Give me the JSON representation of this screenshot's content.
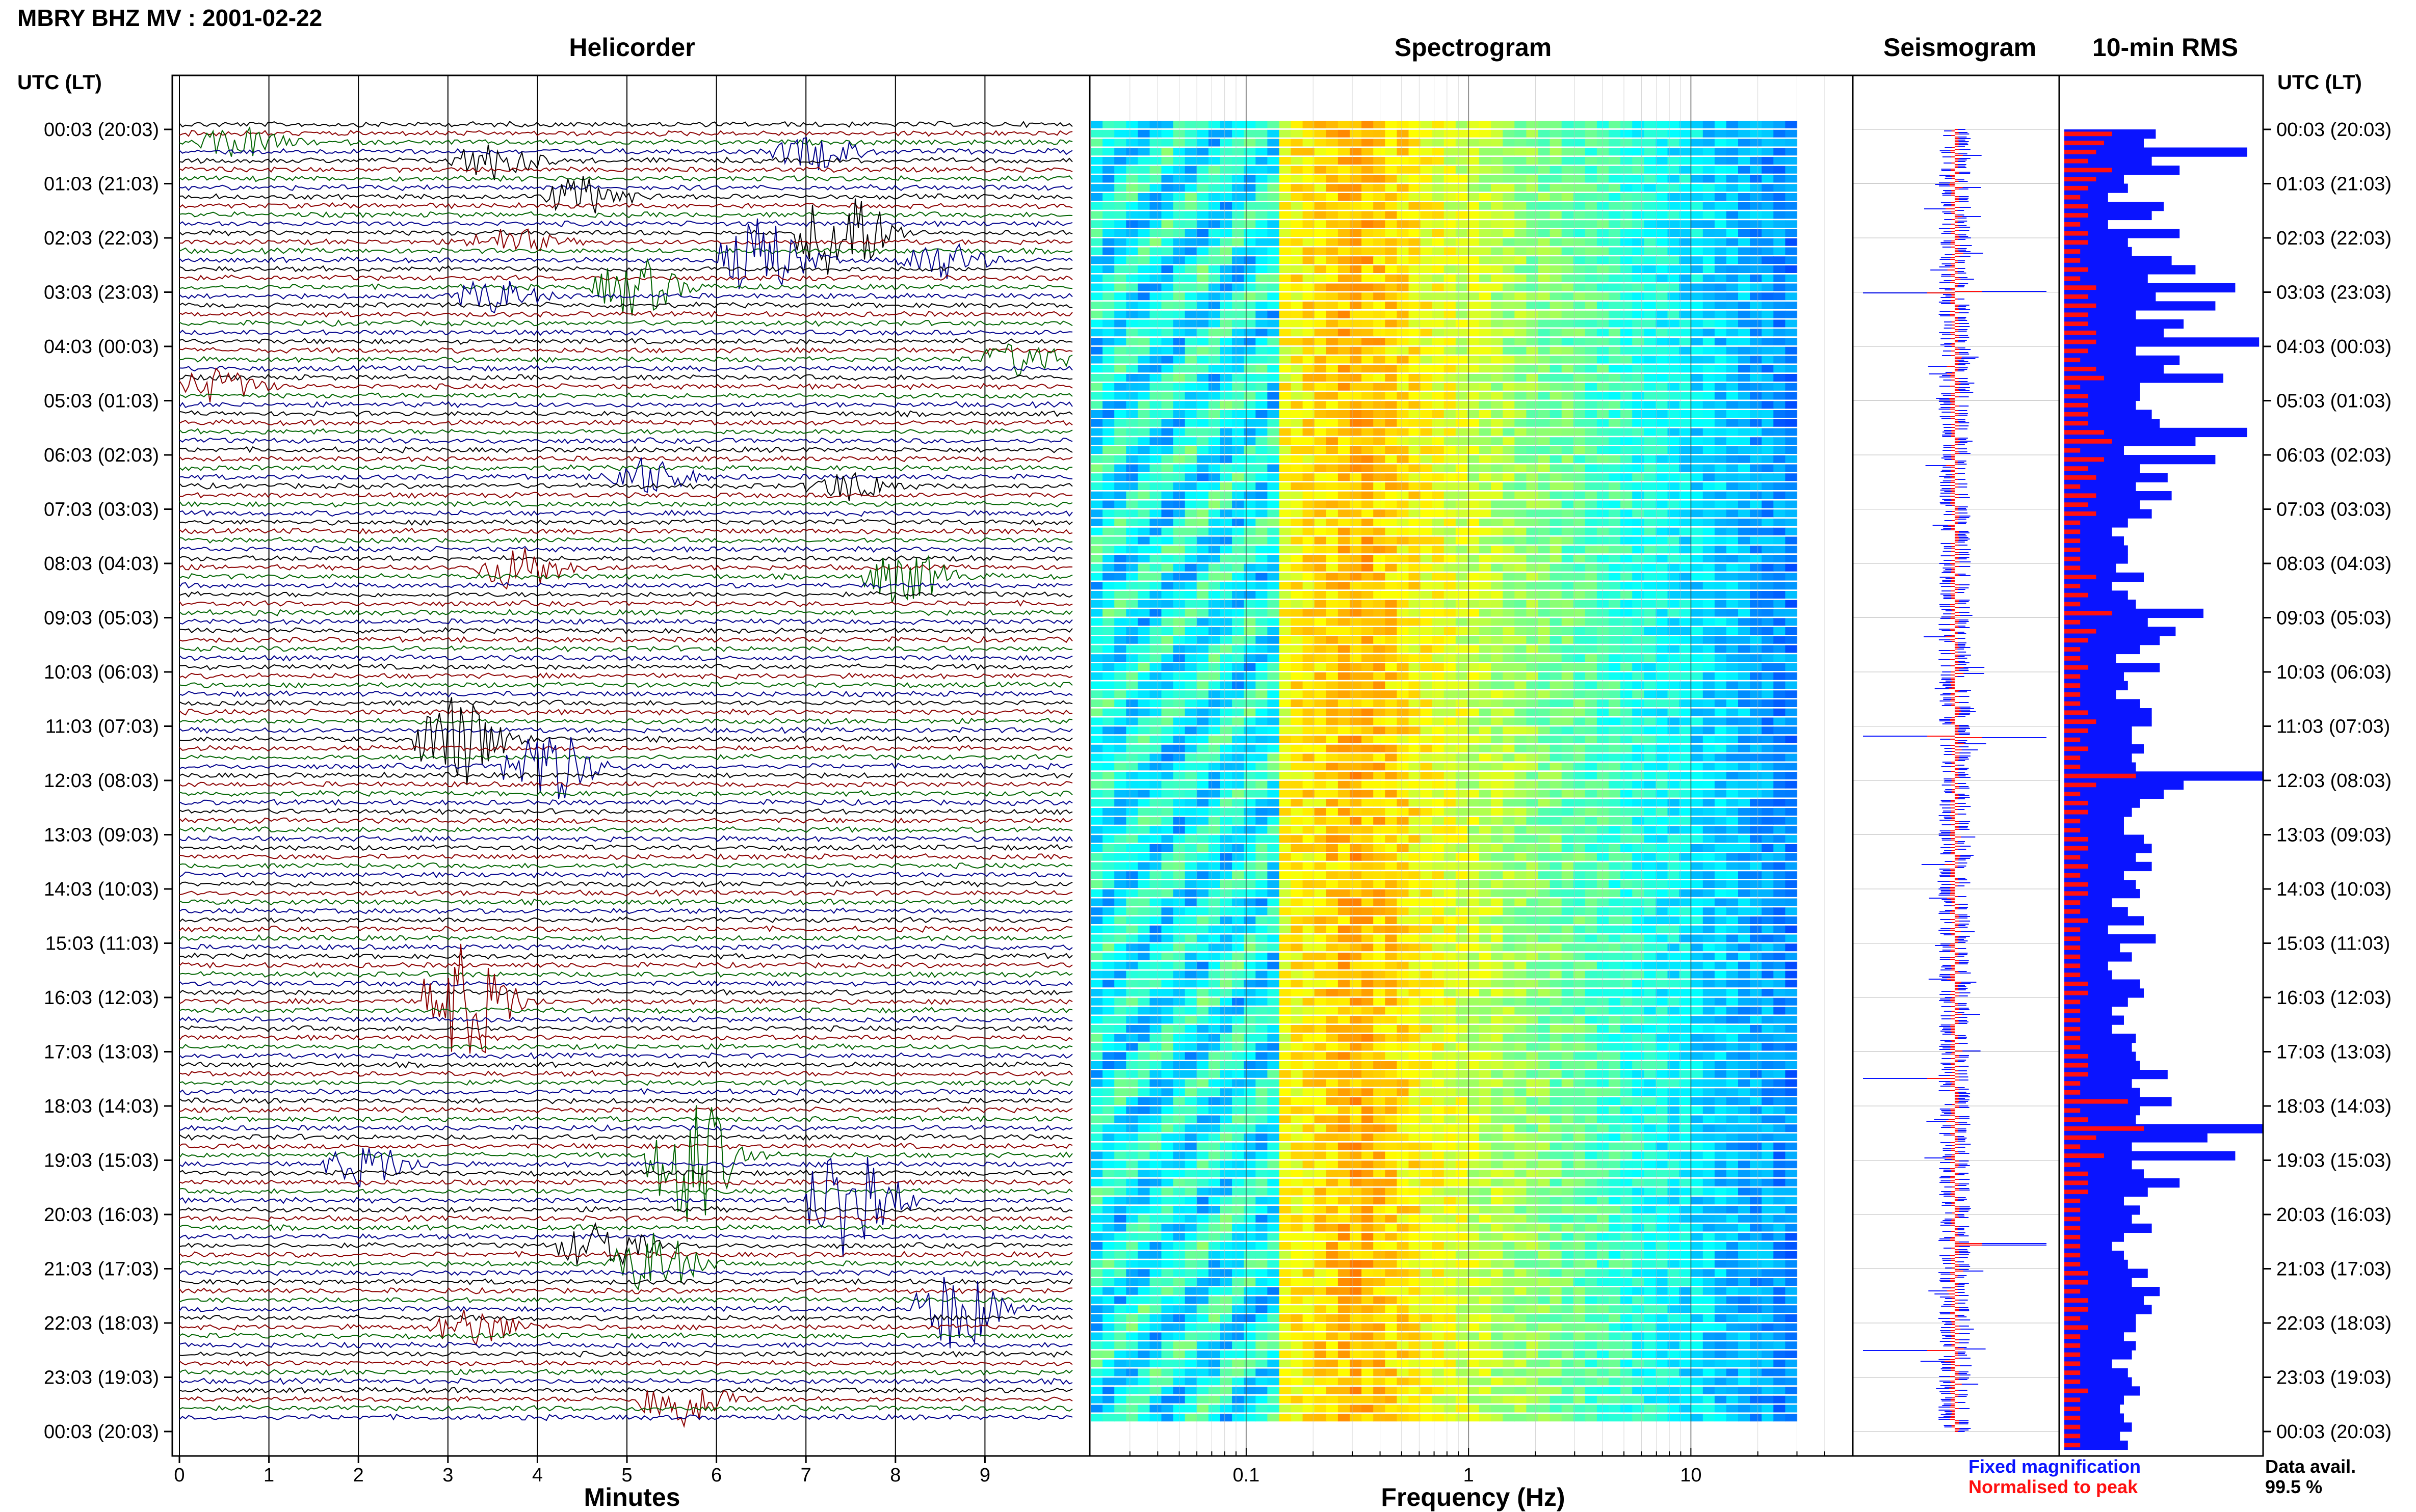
{
  "header": {
    "station": "MBRY BHZ MV : 2001-02-22"
  },
  "panels": {
    "helicorder": "Helicorder",
    "spectrogram": "Spectrogram",
    "seismogram": "Seismogram",
    "rms": "10-min RMS"
  },
  "time_axis": {
    "label": "UTC (LT)",
    "ticks": [
      "00:03 (20:03)",
      "01:03 (21:03)",
      "02:03 (22:03)",
      "03:03 (23:03)",
      "04:03 (00:03)",
      "05:03 (01:03)",
      "06:03 (02:03)",
      "07:03 (03:03)",
      "08:03 (04:03)",
      "09:03 (05:03)",
      "10:03 (06:03)",
      "11:03 (07:03)",
      "12:03 (08:03)",
      "13:03 (09:03)",
      "14:03 (10:03)",
      "15:03 (11:03)",
      "16:03 (12:03)",
      "17:03 (13:03)",
      "18:03 (14:03)",
      "19:03 (15:03)",
      "20:03 (16:03)",
      "21:03 (17:03)",
      "22:03 (18:03)",
      "23:03 (19:03)",
      "00:03 (20:03)"
    ]
  },
  "legend": {
    "fixed": "Fixed magnification",
    "normalised": "Normalised to peak"
  },
  "availability": {
    "label": "Data avail.",
    "value": "99.5 %"
  },
  "colors": {
    "trace_cycle": [
      "#000000",
      "#8b0000",
      "#006400",
      "#00008b"
    ],
    "fixed": "#0a14ff",
    "normalised": "#ff1010",
    "spectrogram_low": "#00007f",
    "spectrogram_high": "#ffff00"
  },
  "chart_data": [
    {
      "type": "line",
      "panel": "helicorder",
      "title": "Helicorder",
      "xlabel": "Minutes",
      "x_ticks": [
        "0",
        "1",
        "2",
        "3",
        "4",
        "5",
        "6",
        "7",
        "8",
        "9"
      ],
      "xlim": [
        0,
        10
      ],
      "traces_per_hour": 6,
      "events": [
        {
          "hour": 0,
          "minute": 0.5,
          "amp": 0.7
        },
        {
          "hour": 0,
          "minute": 6.9,
          "amp": 0.8
        },
        {
          "hour": 0,
          "minute": 3.3,
          "amp": 0.9
        },
        {
          "hour": 1,
          "minute": 4.3,
          "amp": 0.9
        },
        {
          "hour": 2,
          "minute": 3.5,
          "amp": 0.6
        },
        {
          "hour": 2,
          "minute": 8.3,
          "amp": 0.9
        },
        {
          "hour": 2,
          "minute": 7.2,
          "amp": 2.5
        },
        {
          "hour": 2,
          "minute": 6.3,
          "amp": 2.0
        },
        {
          "hour": 3,
          "minute": 3.3,
          "amp": 0.8
        },
        {
          "hour": 3,
          "minute": 4.9,
          "amp": 1.4
        },
        {
          "hour": 4,
          "minute": 9.2,
          "amp": 0.8
        },
        {
          "hour": 4,
          "minute": 0.2,
          "amp": 0.8
        },
        {
          "hour": 6,
          "minute": 5.0,
          "amp": 0.9
        },
        {
          "hour": 6,
          "minute": 7.3,
          "amp": 0.7
        },
        {
          "hour": 8,
          "minute": 7.9,
          "amp": 1.3
        },
        {
          "hour": 8,
          "minute": 3.6,
          "amp": 1.1
        },
        {
          "hour": 11,
          "minute": 2.9,
          "amp": 2.4
        },
        {
          "hour": 11,
          "minute": 3.9,
          "amp": 2.0
        },
        {
          "hour": 16,
          "minute": 3.0,
          "amp": 3.0
        },
        {
          "hour": 19,
          "minute": 1.9,
          "amp": 1.0
        },
        {
          "hour": 19,
          "minute": 5.5,
          "amp": 3.5
        },
        {
          "hour": 19,
          "minute": 7.3,
          "amp": 3.5
        },
        {
          "hour": 20,
          "minute": 4.5,
          "amp": 1.2
        },
        {
          "hour": 21,
          "minute": 5.1,
          "amp": 1.5
        },
        {
          "hour": 21,
          "minute": 8.5,
          "amp": 2.0
        },
        {
          "hour": 22,
          "minute": 3.1,
          "amp": 0.9
        },
        {
          "hour": 23,
          "minute": 5.4,
          "amp": 1.4
        }
      ]
    },
    {
      "type": "heatmap",
      "panel": "spectrogram",
      "title": "Spectrogram",
      "xlabel": "Frequency (Hz)",
      "x_scale": "log",
      "x_ticks": [
        "0.1",
        "1",
        "10"
      ],
      "xlim": [
        0.02,
        40
      ],
      "data_max_hz": 30,
      "peak_band_hz": [
        0.18,
        0.6
      ]
    },
    {
      "type": "line",
      "panel": "seismogram",
      "title": "Seismogram",
      "series": [
        {
          "name": "Fixed magnification"
        },
        {
          "name": "Normalised to peak"
        }
      ],
      "spikes_hour": [
        3.0,
        17.5,
        20.55,
        22.5,
        11.2
      ]
    },
    {
      "type": "bar",
      "panel": "rms",
      "title": "10-min RMS",
      "orientation": "horizontal",
      "series": [
        {
          "name": "Fixed magnification",
          "values": [
            2.3,
            2.0,
            4.6,
            2.2,
            2.9,
            1.5,
            1.6,
            1.1,
            2.5,
            2.2,
            1.1,
            2.9,
            1.6,
            1.7,
            2.7,
            3.3,
            2.1,
            4.3,
            2.3,
            3.8,
            1.8,
            3.0,
            2.5,
            4.9,
            1.8,
            2.9,
            2.5,
            4.0,
            1.9,
            1.9,
            1.8,
            2.2,
            2.4,
            4.6,
            3.3,
            1.5,
            3.8,
            1.9,
            2.6,
            1.8,
            2.7,
            1.9,
            2.2,
            1.6,
            1.2,
            1.5,
            1.6,
            1.6,
            1.3,
            2.0,
            1.2,
            1.6,
            1.8,
            3.5,
            2.1,
            2.8,
            2.4,
            1.9,
            1.3,
            2.4,
            1.5,
            1.6,
            1.3,
            1.9,
            2.2,
            2.2,
            1.7,
            1.7,
            2.0,
            1.7,
            1.8,
            5.0,
            3.0,
            2.5,
            1.9,
            1.7,
            1.5,
            1.5,
            2.0,
            2.2,
            1.8,
            2.2,
            1.5,
            1.8,
            1.9,
            1.2,
            1.6,
            2.0,
            1.1,
            2.3,
            1.4,
            1.7,
            1.1,
            1.2,
            1.9,
            2.0,
            1.6,
            1.2,
            1.5,
            1.2,
            1.8,
            1.7,
            1.8,
            1.9,
            2.6,
            1.7,
            1.9,
            2.7,
            1.9,
            1.8,
            5.0,
            3.6,
            1.7,
            4.3,
            1.7,
            2.0,
            2.9,
            2.1,
            1.5,
            1.9,
            1.7,
            2.2,
            1.5,
            1.2,
            1.5,
            1.6,
            2.1,
            1.7,
            2.4,
            2.0,
            2.2,
            1.8,
            1.8,
            1.5,
            1.8,
            1.7,
            1.2,
            1.6,
            1.7,
            1.9,
            1.5,
            1.4,
            1.5,
            1.7,
            1.4,
            1.6
          ]
        },
        {
          "name": "Normalised to peak",
          "values": [
            0.6,
            0.5,
            0.4,
            0.3,
            0.6,
            0.4,
            0.3,
            0.2,
            0.3,
            0.3,
            0.2,
            0.3,
            0.3,
            0.2,
            0.2,
            0.3,
            0.2,
            0.4,
            0.3,
            0.4,
            0.3,
            0.3,
            0.4,
            0.4,
            0.3,
            0.2,
            0.4,
            0.5,
            0.2,
            0.3,
            0.3,
            0.3,
            0.3,
            0.5,
            0.6,
            0.2,
            0.5,
            0.3,
            0.4,
            0.2,
            0.4,
            0.3,
            0.4,
            0.2,
            0.2,
            0.2,
            0.2,
            0.2,
            0.2,
            0.4,
            0.2,
            0.3,
            0.2,
            0.6,
            0.2,
            0.4,
            0.3,
            0.2,
            0.2,
            0.3,
            0.2,
            0.2,
            0.2,
            0.2,
            0.3,
            0.4,
            0.3,
            0.2,
            0.3,
            0.2,
            0.2,
            0.9,
            0.4,
            0.2,
            0.3,
            0.3,
            0.2,
            0.2,
            0.3,
            0.3,
            0.2,
            0.3,
            0.2,
            0.3,
            0.3,
            0.2,
            0.2,
            0.3,
            0.2,
            0.2,
            0.2,
            0.2,
            0.2,
            0.2,
            0.3,
            0.3,
            0.2,
            0.2,
            0.2,
            0.2,
            0.2,
            0.2,
            0.3,
            0.3,
            0.3,
            0.2,
            0.2,
            0.8,
            0.2,
            0.3,
            1.0,
            0.4,
            0.2,
            0.5,
            0.2,
            0.3,
            0.3,
            0.3,
            0.2,
            0.2,
            0.2,
            0.2,
            0.2,
            0.2,
            0.2,
            0.2,
            0.3,
            0.3,
            0.2,
            0.3,
            0.3,
            0.2,
            0.3,
            0.2,
            0.2,
            0.2,
            0.2,
            0.2,
            0.2,
            0.3,
            0.2,
            0.2,
            0.2,
            0.2,
            0.2,
            0.2
          ]
        }
      ]
    }
  ]
}
